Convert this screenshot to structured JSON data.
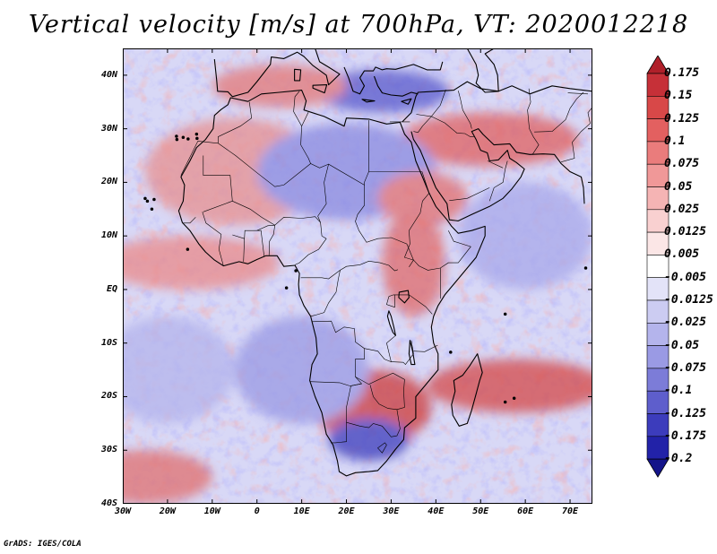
{
  "title": "Vertical velocity [m/s] at 700hPa, VT: 2020012218",
  "credit": "GrADS: IGES/COLA",
  "lat_labels": [
    "40N",
    "30N",
    "20N",
    "10N",
    "EQ",
    "10S",
    "20S",
    "30S",
    "40S"
  ],
  "lon_labels": [
    "30W",
    "20W",
    "10W",
    "0",
    "10E",
    "20E",
    "30E",
    "40E",
    "50E",
    "60E",
    "70E"
  ],
  "colorbar": {
    "labels": [
      "0.175",
      "0.15",
      "0.125",
      "0.1",
      "0.075",
      "0.05",
      "0.025",
      "0.0125",
      "0.005",
      "-0.005",
      "-0.0125",
      "-0.025",
      "-0.05",
      "-0.075",
      "-0.1",
      "-0.125",
      "-0.175",
      "-0.2"
    ],
    "colors": [
      "#b0202a",
      "#c63038",
      "#d84848",
      "#e36060",
      "#ea7c7c",
      "#f09898",
      "#f5b4b4",
      "#f9d0d0",
      "#fbe6e6",
      "#ffffff",
      "#e3e3f8",
      "#ccccf2",
      "#b4b4ec",
      "#9a9ae4",
      "#7c7cd8",
      "#5e5ecc",
      "#3c3cbc",
      "#2222a8",
      "#14148a"
    ]
  },
  "map": {
    "lon_range": [
      -30,
      75
    ],
    "lat_range": [
      -40,
      45
    ],
    "background_color": "#d8d8f6"
  }
}
